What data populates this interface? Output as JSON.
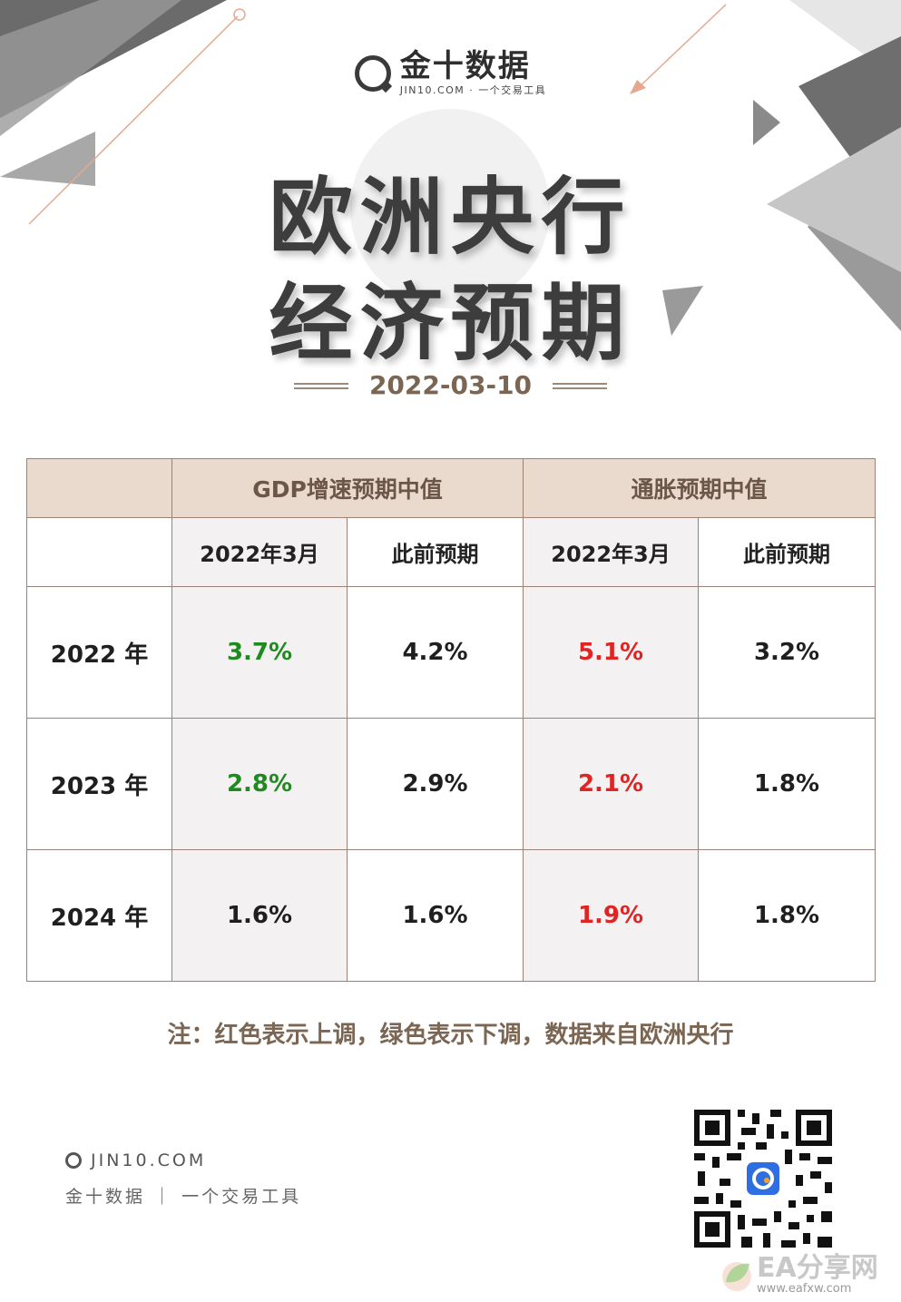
{
  "brand": {
    "name": "金十数据",
    "sub": "JIN10.COM · 一个交易工具"
  },
  "title": {
    "line1": "欧洲央行",
    "line2": "经济预期"
  },
  "date": "2022-03-10",
  "table": {
    "group_headers": [
      "GDP增速预期中值",
      "通胀预期中值"
    ],
    "sub_headers": [
      "2022年3月",
      "此前预期",
      "2022年3月",
      "此前预期"
    ],
    "rows": [
      {
        "year": "2022 年",
        "gdp_current": "3.7%",
        "gdp_previous": "4.2%",
        "inf_current": "5.1%",
        "inf_previous": "3.2%"
      },
      {
        "year": "2023 年",
        "gdp_current": "2.8%",
        "gdp_previous": "2.9%",
        "inf_current": "2.1%",
        "inf_previous": "1.8%"
      },
      {
        "year": "2024 年",
        "gdp_current": "1.6%",
        "gdp_previous": "1.6%",
        "inf_current": "1.9%",
        "inf_previous": "1.8%"
      }
    ]
  },
  "note": "注：红色表示上调，绿色表示下调，数据来自欧洲央行",
  "footer": {
    "url": "JIN10.COM",
    "tagline": "金十数据 ｜ 一个交易工具"
  },
  "badge": {
    "name": "EA分享网",
    "url": "www.eafxw.com"
  },
  "colors": {
    "up": "#e02323",
    "down": "#1f8a1f",
    "header_bg": "#ead9cd",
    "accent": "#7b6553"
  }
}
